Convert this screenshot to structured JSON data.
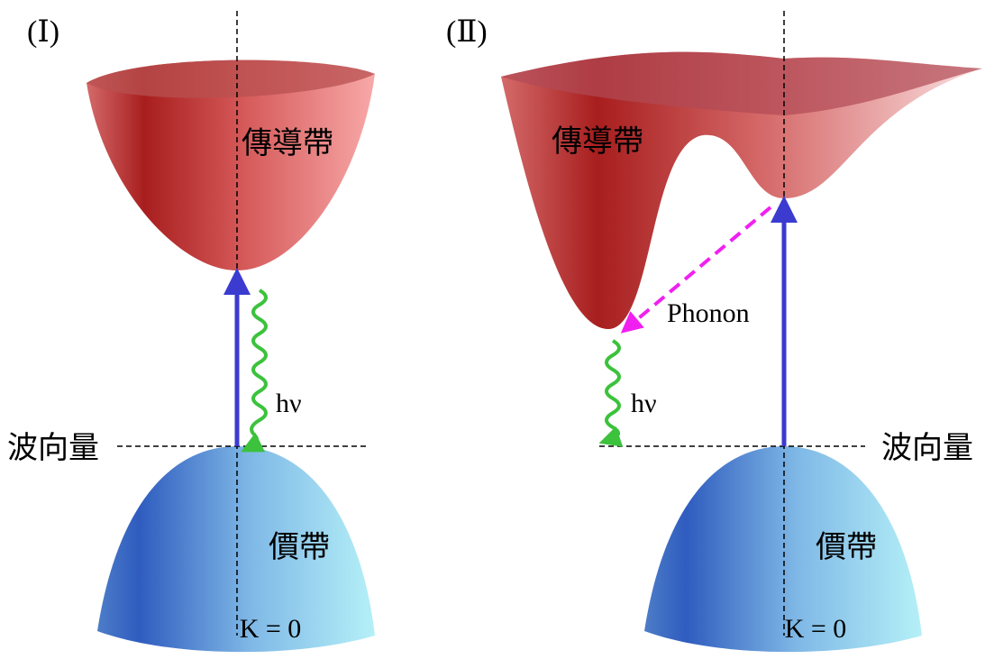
{
  "panels": [
    {
      "label": "(Ⅰ)",
      "conduction_band": "傳導帶",
      "valence_band": "價帶",
      "wavevector": "波向量",
      "photon": "hν",
      "k_zero": "K = 0"
    },
    {
      "label": "(Ⅱ)",
      "conduction_band": "傳導帶",
      "valence_band": "價帶",
      "wavevector": "波向量",
      "photon": "hν",
      "k_zero": "K = 0",
      "phonon": "Phonon"
    }
  ]
}
